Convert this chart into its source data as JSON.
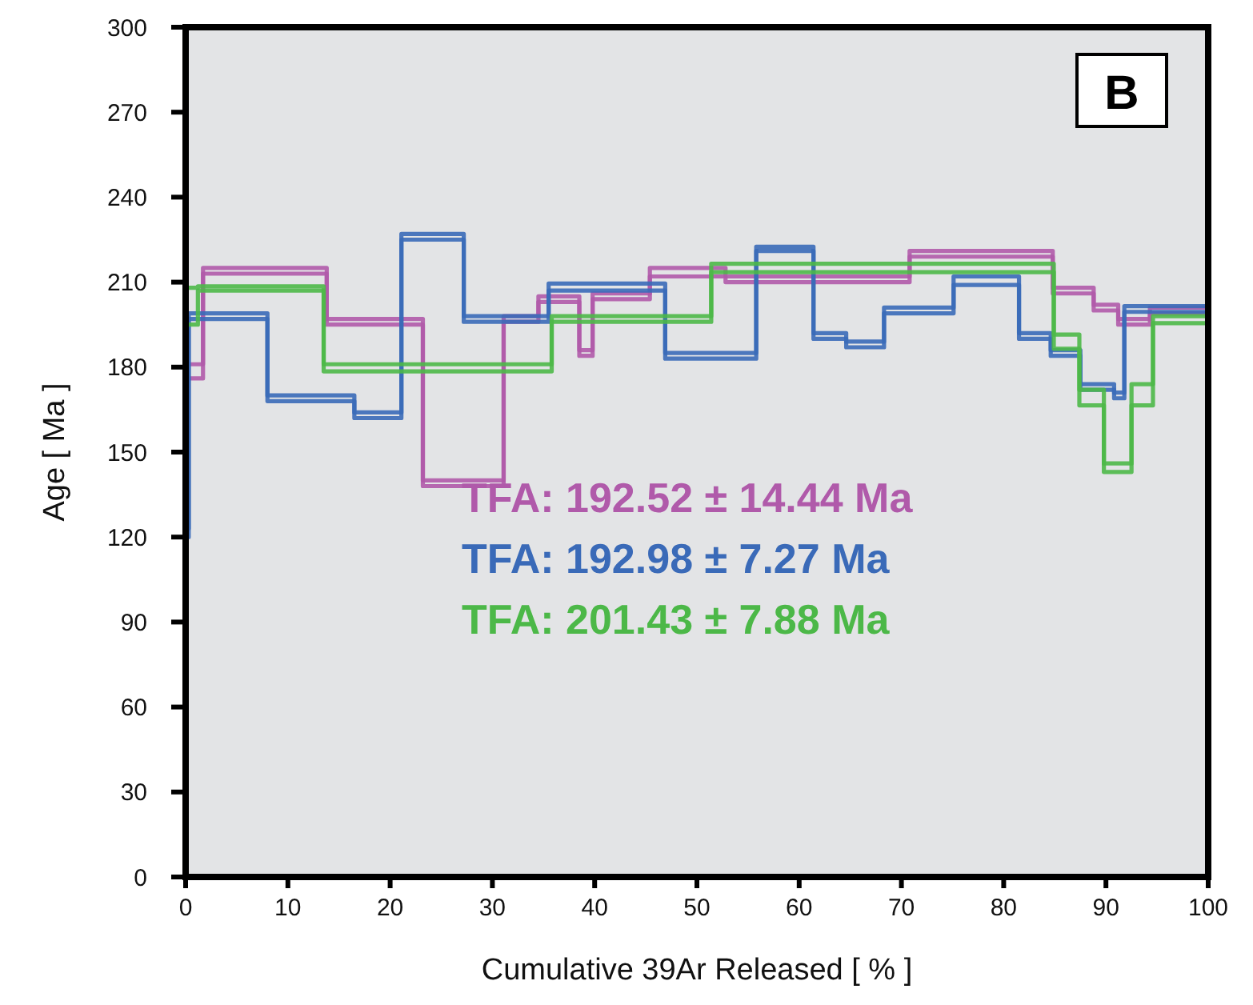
{
  "chart_data": {
    "type": "step",
    "xlabel": "Cumulative 39Ar Released [ % ]",
    "ylabel": "Age [ Ma ]",
    "xlim": [
      0,
      100
    ],
    "xticks": [
      0,
      10,
      20,
      30,
      40,
      50,
      60,
      70,
      80,
      90,
      100
    ],
    "ylim": [
      0,
      300
    ],
    "yticks": [
      0,
      30,
      60,
      90,
      120,
      150,
      180,
      210,
      240,
      270,
      300
    ],
    "grid": false,
    "annotations": [
      "TFA: 192.52 ± 14.44 Ma",
      "TFA: 192.98 ± 7.27 Ma",
      "TFA: 201.43 ± 7.88 Ma",
      "B"
    ],
    "series": [
      {
        "color": "#b05aaa",
        "x": [
          0,
          1.7,
          13.8,
          23.2,
          31.1,
          34.5,
          38.5,
          39.8,
          45.4,
          52.8,
          70.8,
          84.8,
          88.8,
          91.2,
          94.3,
          100
        ],
        "values": [
          176,
          213,
          195,
          138,
          196,
          203,
          184,
          204,
          212,
          210,
          219,
          206,
          200,
          195,
          199,
          199
        ]
      },
      {
        "color": "#b05aaa",
        "x": [
          0,
          1.7,
          13.8,
          23.2,
          31.1,
          34.5,
          38.5,
          39.8,
          45.4,
          52.8,
          70.8,
          84.8,
          88.8,
          91.2,
          94.3,
          100
        ],
        "values": [
          181,
          215,
          197,
          140,
          198,
          205,
          186,
          206,
          215,
          212,
          221,
          208,
          202,
          197,
          201,
          201
        ]
      },
      {
        "color": "#3a6ab8",
        "x": [
          0,
          0.3,
          8.0,
          16.5,
          21.1,
          27.2,
          35.5,
          46.9,
          55.8,
          61.4,
          64.6,
          68.3,
          75.1,
          81.5,
          84.6,
          87.5,
          90.8,
          91.8,
          100
        ],
        "values": [
          120,
          197,
          168,
          162,
          225,
          196,
          207,
          183,
          221,
          190,
          187,
          199,
          209,
          190,
          184,
          172,
          169,
          199.5,
          199.5
        ]
      },
      {
        "color": "#3a6ab8",
        "x": [
          0,
          0.3,
          8.0,
          16.5,
          21.1,
          27.2,
          35.5,
          46.9,
          55.8,
          61.4,
          64.6,
          68.3,
          75.1,
          81.5,
          84.6,
          87.5,
          90.8,
          91.8,
          100
        ],
        "values": [
          123,
          199,
          170,
          164,
          227,
          198,
          209.5,
          185,
          222.5,
          192,
          189,
          201,
          212,
          192,
          186,
          174,
          171,
          201.5,
          201.5
        ]
      },
      {
        "color": "#4cb848",
        "x": [
          0,
          1.2,
          13.5,
          35.8,
          51.4,
          84.9,
          87.4,
          89.8,
          92.5,
          94.6,
          100
        ],
        "values": [
          195,
          207,
          178.5,
          196,
          213.5,
          186.5,
          166.5,
          143,
          166.5,
          195.5,
          195.5
        ]
      },
      {
        "color": "#4cb848",
        "x": [
          0,
          1.2,
          13.5,
          35.8,
          51.4,
          84.9,
          87.4,
          89.8,
          92.5,
          94.6,
          100
        ],
        "values": [
          208,
          208.5,
          181,
          198,
          216.5,
          191.5,
          172,
          146,
          174,
          198,
          198
        ]
      }
    ]
  }
}
